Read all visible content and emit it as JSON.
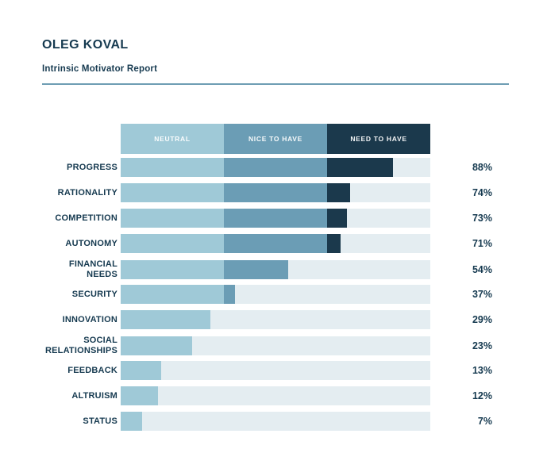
{
  "header": {
    "title": "OLEG KOVAL",
    "subtitle": "Intrinsic Motivator Report"
  },
  "colors": {
    "navy_text": "#163a50",
    "divider": "#6e9db3",
    "track": "#e4edf1",
    "neutral": "#9fc9d7",
    "nice_to_have": "#6b9db5",
    "need_to_have": "#1b394c"
  },
  "chart_data": {
    "type": "bar",
    "orientation": "horizontal",
    "title": "Intrinsic Motivator Report",
    "xlim": [
      0,
      100
    ],
    "value_suffix": "%",
    "grid": false,
    "legend_position": "top",
    "zone_boundaries": [
      33.33,
      66.67
    ],
    "legend": [
      {
        "label": "NEUTRAL",
        "color": "#9fc9d7"
      },
      {
        "label": "NICE TO HAVE",
        "color": "#6b9db5"
      },
      {
        "label": "NEED TO HAVE",
        "color": "#1b394c"
      }
    ],
    "categories": [
      "PROGRESS",
      "RATIONALITY",
      "COMPETITION",
      "AUTONOMY",
      "FINANCIAL NEEDS",
      "SECURITY",
      "INNOVATION",
      "SOCIAL RELATIONSHIPS",
      "FEEDBACK",
      "ALTRUISM",
      "STATUS"
    ],
    "values": [
      88,
      74,
      73,
      71,
      54,
      37,
      29,
      23,
      13,
      12,
      7
    ]
  }
}
